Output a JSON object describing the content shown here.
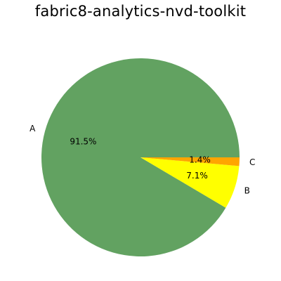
{
  "chart_data": {
    "type": "pie",
    "title": "fabric8-analytics-nvd-toolkit",
    "slices": [
      {
        "label": "A",
        "value": 91.5,
        "pct_label": "91.5%",
        "color": "#62a261"
      },
      {
        "label": "B",
        "value": 7.1,
        "pct_label": "7.1%",
        "color": "#ffff00"
      },
      {
        "label": "C",
        "value": 1.4,
        "pct_label": "1.4%",
        "color": "#ffa500"
      }
    ],
    "start_angle_deg": 0,
    "direction": "counterclockwise"
  }
}
